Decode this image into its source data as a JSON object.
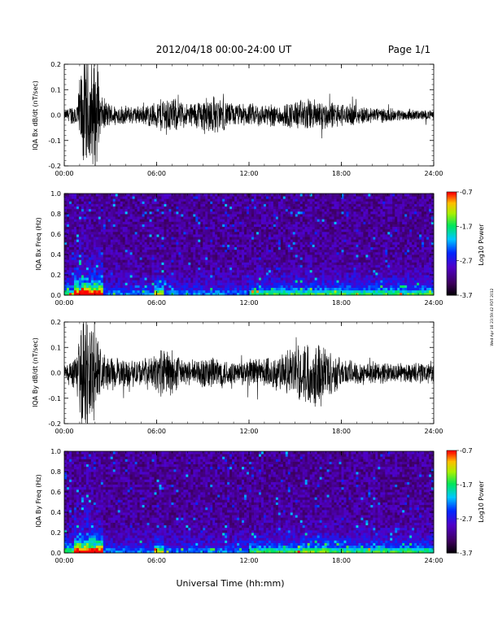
{
  "header": {
    "title": "2012/04/18  00:00-24:00 UT",
    "page": "Page 1/1"
  },
  "side_note": "Wed Apr 18 23:59:42 PDT 2012",
  "xaxis": {
    "label": "Universal Time (hh:mm)",
    "ticks": [
      "00:00",
      "06:00",
      "12:00",
      "18:00",
      "24:00"
    ],
    "range_hours": [
      0,
      24
    ]
  },
  "colorbar": {
    "label": "Log10 Power",
    "ticks": [
      "-0.7",
      "-1.7",
      "-2.7",
      "-3.7"
    ],
    "range": [
      -3.7,
      -0.7
    ]
  },
  "chart_data": [
    {
      "type": "line",
      "ylabel": "IQA Bx dB/dt (nT/sec)",
      "ylim": [
        -0.2,
        0.2
      ],
      "yticks": [
        "0.2",
        "0.1",
        "0.0",
        "-0.1",
        "-0.2"
      ],
      "description_series": "magnetometer time series",
      "envelope": {
        "hours": [
          0,
          0.8,
          1.2,
          1.6,
          2.0,
          2.4,
          3.0,
          4.0,
          5.0,
          6.0,
          6.5,
          8.0,
          9.5,
          11.0,
          12.0,
          14.0,
          15.5,
          16.5,
          18.0,
          20.0,
          22.0,
          24.0
        ],
        "amplitude": [
          0.02,
          0.06,
          0.25,
          0.25,
          0.25,
          0.08,
          0.05,
          0.04,
          0.04,
          0.06,
          0.09,
          0.05,
          0.09,
          0.05,
          0.05,
          0.05,
          0.07,
          0.07,
          0.05,
          0.035,
          0.025,
          0.02
        ]
      }
    },
    {
      "type": "heatmap",
      "ylabel": "IQA Bx Freq (Hz)",
      "ylim": [
        0.0,
        1.0
      ],
      "yticks": [
        "1.0",
        "0.8",
        "0.6",
        "0.4",
        "0.2",
        "0.0"
      ],
      "zlim": [
        -3.7,
        -0.7
      ]
    },
    {
      "type": "line",
      "ylabel": "IQA By dB/dt (nT/sec)",
      "ylim": [
        -0.2,
        0.2
      ],
      "yticks": [
        "0.2",
        "0.1",
        "0.0",
        "-0.1",
        "-0.2"
      ],
      "envelope": {
        "hours": [
          0,
          0.8,
          1.2,
          1.6,
          2.0,
          2.4,
          3.0,
          4.0,
          5.0,
          6.0,
          6.5,
          8.0,
          9.5,
          11.0,
          12.0,
          14.0,
          15.5,
          16.5,
          18.0,
          20.0,
          22.0,
          24.0
        ],
        "amplitude": [
          0.03,
          0.08,
          0.25,
          0.25,
          0.25,
          0.1,
          0.07,
          0.06,
          0.06,
          0.08,
          0.12,
          0.05,
          0.08,
          0.05,
          0.06,
          0.08,
          0.13,
          0.15,
          0.06,
          0.05,
          0.04,
          0.05
        ]
      }
    },
    {
      "type": "heatmap",
      "ylabel": "IQA By Freq (Hz)",
      "ylim": [
        0.0,
        1.0
      ],
      "yticks": [
        "1.0",
        "0.8",
        "0.6",
        "0.4",
        "0.2",
        "0.0"
      ],
      "zlim": [
        -3.7,
        -0.7
      ]
    }
  ]
}
